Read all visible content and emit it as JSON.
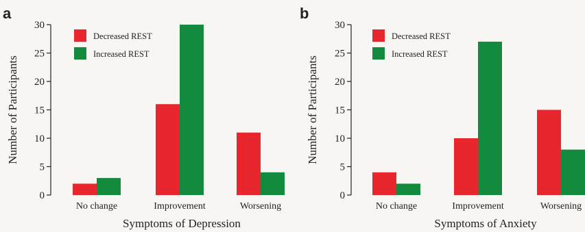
{
  "colors": {
    "decreased": "#e8262d",
    "increased": "#138a3e",
    "axis": "#222222",
    "background": "#f7f6f3"
  },
  "chart_data": [
    {
      "panel": "a",
      "type": "bar",
      "categories": [
        "No change",
        "Improvement",
        "Worsening"
      ],
      "series": [
        {
          "name": "Decreased REST",
          "values": [
            2,
            16,
            11
          ]
        },
        {
          "name": "Increased REST",
          "values": [
            3,
            30,
            4
          ]
        }
      ],
      "xlabel": "Symptoms of Depression",
      "ylabel": "Number of Participants",
      "ylim": [
        0,
        30
      ],
      "yticks": [
        0,
        5,
        10,
        15,
        20,
        25,
        30
      ],
      "grid": false,
      "legend": "top-left"
    },
    {
      "panel": "b",
      "type": "bar",
      "categories": [
        "No change",
        "Improvement",
        "Worsening"
      ],
      "series": [
        {
          "name": "Decreased REST",
          "values": [
            4,
            10,
            15
          ]
        },
        {
          "name": "Increased REST",
          "values": [
            2,
            27,
            8
          ]
        }
      ],
      "xlabel": "Symptoms of Anxiety",
      "ylabel": "Number of Participants",
      "ylim": [
        0,
        30
      ],
      "yticks": [
        0,
        5,
        10,
        15,
        20,
        25,
        30
      ],
      "grid": false,
      "legend": "top-left"
    }
  ]
}
